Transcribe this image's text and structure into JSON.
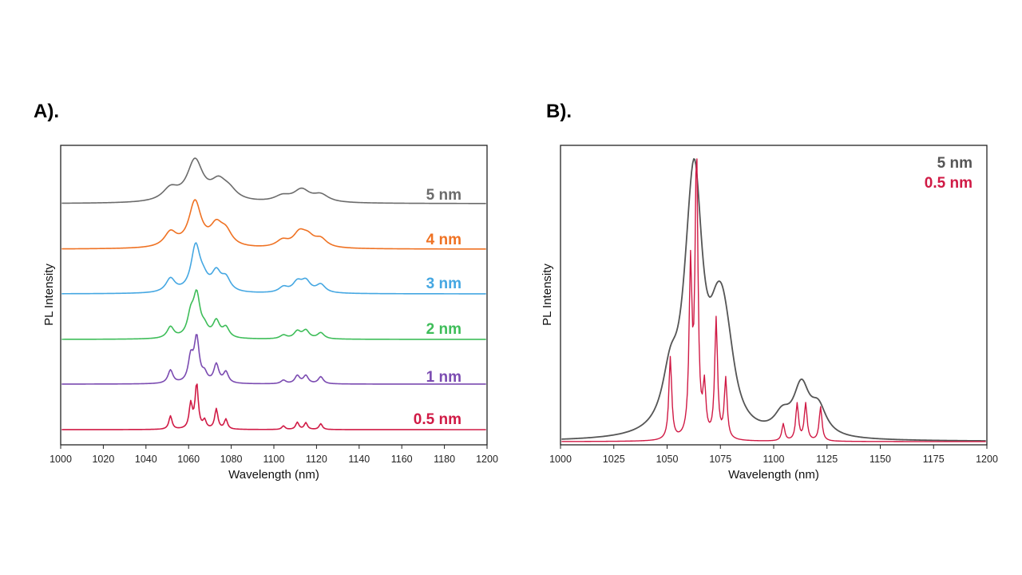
{
  "chart_data": [
    {
      "panel": "A).",
      "type": "line",
      "layout": "stacked-offset",
      "xlabel": "Wavelength (nm)",
      "ylabel": "PL Intensity",
      "xlim": [
        1000,
        1200
      ],
      "xticks": [
        1000,
        1020,
        1040,
        1060,
        1080,
        1100,
        1120,
        1140,
        1160,
        1180,
        1200
      ],
      "y_ticks_shown": false,
      "grid": false,
      "series": [
        {
          "name": "5 nm",
          "color": "#6b6b6b",
          "width": 4.5,
          "peaks": [
            [
              1051.5,
              0.3
            ],
            [
              1063,
              1.0
            ],
            [
              1074,
              0.42
            ],
            [
              1079,
              0.22
            ],
            [
              1104,
              0.14
            ],
            [
              1113,
              0.3
            ],
            [
              1122,
              0.18
            ]
          ]
        },
        {
          "name": "4 nm",
          "color": "#ef7223",
          "width": 3.5,
          "peaks": [
            [
              1051.5,
              0.32
            ],
            [
              1063,
              1.0
            ],
            [
              1073,
              0.42
            ],
            [
              1077.5,
              0.3
            ],
            [
              1104,
              0.15
            ],
            [
              1112,
              0.3
            ],
            [
              1116,
              0.2
            ],
            [
              1122,
              0.18
            ]
          ]
        },
        {
          "name": "3 nm",
          "color": "#45a7e2",
          "width": 2.6,
          "peaks": [
            [
              1051.5,
              0.3
            ],
            [
              1063.3,
              1.0
            ],
            [
              1067,
              0.2
            ],
            [
              1073,
              0.4
            ],
            [
              1077.5,
              0.28
            ],
            [
              1104.5,
              0.12
            ],
            [
              1111,
              0.22
            ],
            [
              1115,
              0.24
            ],
            [
              1122,
              0.18
            ]
          ]
        },
        {
          "name": "2 nm",
          "color": "#3ebd59",
          "width": 1.9,
          "peaks": [
            [
              1051.5,
              0.28
            ],
            [
              1061,
              0.5
            ],
            [
              1063.8,
              1.0
            ],
            [
              1067.5,
              0.2
            ],
            [
              1073,
              0.4
            ],
            [
              1077.5,
              0.25
            ],
            [
              1104.5,
              0.09
            ],
            [
              1111,
              0.18
            ],
            [
              1115,
              0.2
            ],
            [
              1122,
              0.15
            ]
          ]
        },
        {
          "name": "1 nm",
          "color": "#7b4bb1",
          "width": 1.4,
          "peaks": [
            [
              1051.5,
              0.3
            ],
            [
              1061,
              0.55
            ],
            [
              1063.8,
              1.0
            ],
            [
              1067.5,
              0.18
            ],
            [
              1073,
              0.42
            ],
            [
              1077.5,
              0.25
            ],
            [
              1104.5,
              0.08
            ],
            [
              1111,
              0.18
            ],
            [
              1115,
              0.18
            ],
            [
              1122,
              0.16
            ]
          ]
        },
        {
          "name": "0.5 nm",
          "color": "#d01a45",
          "width": 0.9,
          "peaks": [
            [
              1051.5,
              0.3
            ],
            [
              1061,
              0.55
            ],
            [
              1063.8,
              1.0
            ],
            [
              1067.5,
              0.18
            ],
            [
              1073,
              0.45
            ],
            [
              1077.5,
              0.22
            ],
            [
              1104.5,
              0.08
            ],
            [
              1111,
              0.16
            ],
            [
              1115,
              0.15
            ],
            [
              1122,
              0.13
            ]
          ]
        }
      ]
    },
    {
      "panel": "B).",
      "type": "line",
      "layout": "overlay",
      "xlabel": "Wavelength (nm)",
      "ylabel": "PL Intensity",
      "xlim": [
        1000,
        1200
      ],
      "xticks": [
        1000,
        1025,
        1050,
        1075,
        1100,
        1125,
        1150,
        1175,
        1200
      ],
      "y_ticks_shown": false,
      "grid": false,
      "series": [
        {
          "name": "5 nm",
          "color": "#555555",
          "width": 4.5,
          "peaks": [
            [
              1051.5,
              0.22
            ],
            [
              1060,
              0.25
            ],
            [
              1063,
              1.0
            ],
            [
              1073,
              0.25
            ],
            [
              1076,
              0.3
            ],
            [
              1079,
              0.14
            ],
            [
              1104,
              0.08
            ],
            [
              1113,
              0.22
            ],
            [
              1121,
              0.12
            ]
          ]
        },
        {
          "name": "0.5 nm",
          "color": "#d01a45",
          "width": 0.8,
          "peaks": [
            [
              1051.5,
              0.29
            ],
            [
              1061,
              0.59
            ],
            [
              1063.8,
              1.0
            ],
            [
              1067.5,
              0.17
            ],
            [
              1073,
              0.42
            ],
            [
              1077.5,
              0.21
            ],
            [
              1104.5,
              0.06
            ],
            [
              1111,
              0.13
            ],
            [
              1115,
              0.13
            ],
            [
              1122,
              0.12
            ]
          ]
        }
      ]
    }
  ]
}
